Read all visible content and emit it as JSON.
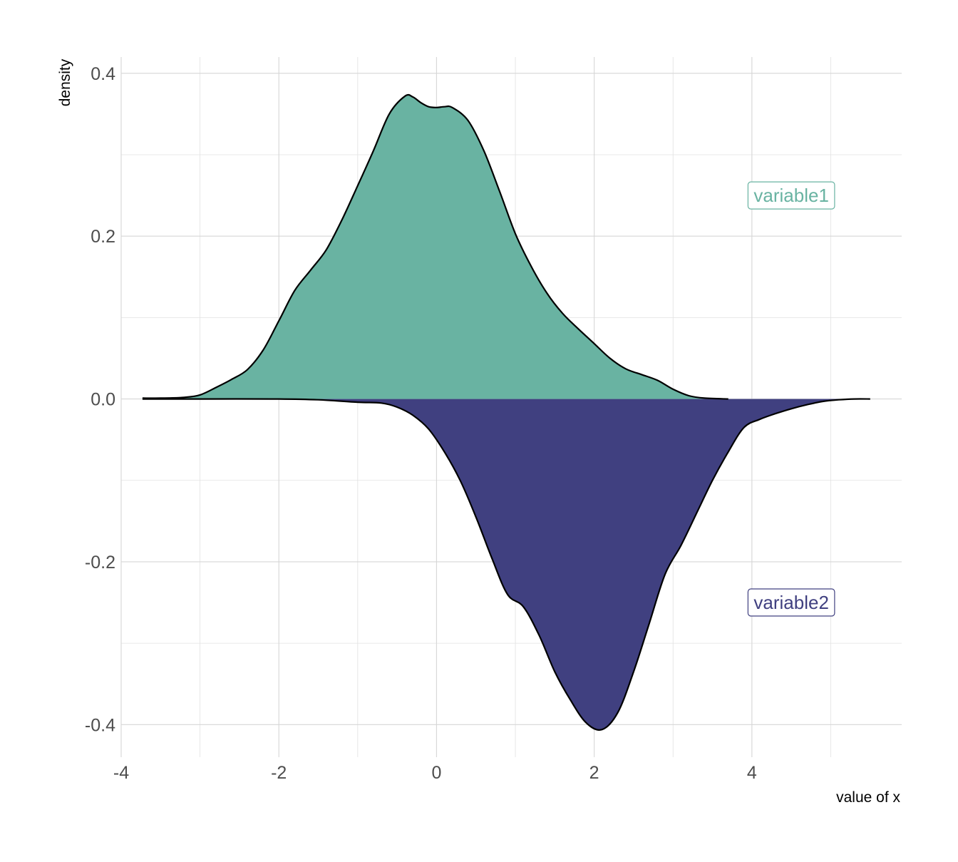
{
  "chart_data": {
    "type": "area",
    "xlabel": "value of x",
    "ylabel": "density",
    "xlim": [
      -4,
      5.9
    ],
    "ylim": [
      -0.44,
      0.42
    ],
    "x_ticks": [
      -4,
      -2,
      0,
      2,
      4
    ],
    "x_tick_labels": [
      "-4",
      "-2",
      "0",
      "2",
      "4"
    ],
    "y_ticks": [
      0.4,
      0.2,
      0.0,
      -0.2,
      -0.4
    ],
    "y_tick_labels": [
      "0.4",
      "0.2",
      "0.0",
      "-0.2",
      "-0.4"
    ],
    "grid": true,
    "series": [
      {
        "name": "variable1",
        "color": "#69b3a2",
        "direction": "up",
        "x": [
          -3.73,
          -3.5,
          -3.2,
          -3.0,
          -2.8,
          -2.6,
          -2.4,
          -2.2,
          -2.0,
          -1.8,
          -1.6,
          -1.4,
          -1.2,
          -1.0,
          -0.8,
          -0.6,
          -0.4,
          -0.3,
          -0.2,
          -0.1,
          0.0,
          0.1,
          0.2,
          0.4,
          0.6,
          0.8,
          1.0,
          1.2,
          1.4,
          1.6,
          1.8,
          2.0,
          2.2,
          2.4,
          2.6,
          2.8,
          3.0,
          3.2,
          3.4,
          3.7
        ],
        "y": [
          0.001,
          0.001,
          0.002,
          0.005,
          0.014,
          0.024,
          0.036,
          0.06,
          0.096,
          0.133,
          0.158,
          0.183,
          0.22,
          0.262,
          0.305,
          0.35,
          0.372,
          0.371,
          0.364,
          0.359,
          0.358,
          0.359,
          0.358,
          0.342,
          0.305,
          0.255,
          0.203,
          0.163,
          0.13,
          0.105,
          0.086,
          0.068,
          0.05,
          0.037,
          0.03,
          0.023,
          0.012,
          0.004,
          0.001,
          0.0
        ]
      },
      {
        "name": "variable2",
        "color": "#404080",
        "direction": "down",
        "x": [
          -3.73,
          -3.0,
          -2.0,
          -1.5,
          -1.0,
          -0.7,
          -0.5,
          -0.3,
          -0.1,
          0.1,
          0.3,
          0.5,
          0.7,
          0.9,
          1.1,
          1.3,
          1.5,
          1.7,
          1.9,
          2.1,
          2.3,
          2.5,
          2.7,
          2.9,
          3.1,
          3.3,
          3.5,
          3.7,
          3.9,
          4.1,
          4.3,
          4.5,
          4.7,
          4.9,
          5.1,
          5.3,
          5.5
        ],
        "y": [
          0.0,
          0.0,
          0.0,
          -0.001,
          -0.004,
          -0.005,
          -0.01,
          -0.02,
          -0.037,
          -0.065,
          -0.1,
          -0.145,
          -0.195,
          -0.24,
          -0.255,
          -0.29,
          -0.335,
          -0.37,
          -0.398,
          -0.406,
          -0.385,
          -0.335,
          -0.275,
          -0.215,
          -0.18,
          -0.14,
          -0.1,
          -0.065,
          -0.035,
          -0.025,
          -0.018,
          -0.012,
          -0.007,
          -0.003,
          -0.001,
          0.0,
          0.0
        ]
      }
    ],
    "annotations": [
      {
        "text": "variable1",
        "x": 4.5,
        "y": 0.25,
        "color": "#69b3a2"
      },
      {
        "text": "variable2",
        "x": 4.5,
        "y": -0.25,
        "color": "#404080"
      }
    ]
  }
}
